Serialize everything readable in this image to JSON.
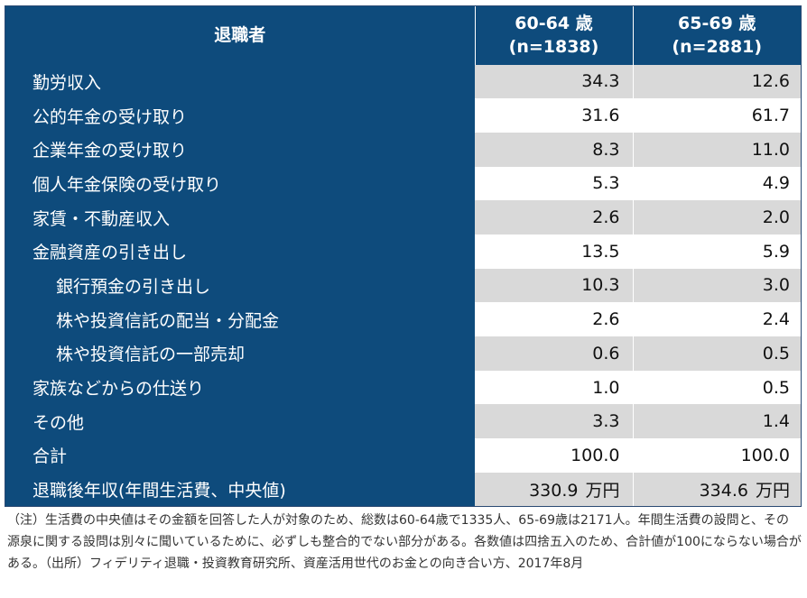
{
  "header": {
    "col1": "退職者",
    "col2_line1": "60-64 歳",
    "col2_line2": "(n=1838)",
    "col3_line1": "65-69 歳",
    "col3_line2": "(n=2881)"
  },
  "rows": [
    {
      "label": "勤労収入",
      "a": "34.3",
      "b": "12.6"
    },
    {
      "label": "公的年金の受け取り",
      "a": "31.6",
      "b": "61.7"
    },
    {
      "label": "企業年金の受け取り",
      "a": "8.3",
      "b": "11.0"
    },
    {
      "label": "個人年金保険の受け取り",
      "a": "5.3",
      "b": "4.9"
    },
    {
      "label": "家賃・不動産収入",
      "a": "2.6",
      "b": "2.0"
    },
    {
      "label": "金融資産の引き出し",
      "a": "13.5",
      "b": "5.9"
    },
    {
      "label": "銀行預金の引き出し",
      "a": "10.3",
      "b": "3.0"
    },
    {
      "label": "株や投資信託の配当・分配金",
      "a": "2.6",
      "b": "2.4"
    },
    {
      "label": "株や投資信託の一部売却",
      "a": "0.6",
      "b": "0.5"
    },
    {
      "label": "家族などからの仕送り",
      "a": "1.0",
      "b": "0.5"
    },
    {
      "label": "その他",
      "a": "3.3",
      "b": "1.4"
    },
    {
      "label": "合計",
      "a": "100.0",
      "b": "100.0"
    },
    {
      "label": "退職後年収(年間生活費、中央値)",
      "a": "330.9",
      "b": "334.6",
      "unit": "万円"
    }
  ],
  "note": "（注）生活費の中央値はその金額を回答した人が対象のため、総数は60-64歳で1335人、65-69歳は2171人。年間生活費の設問と、その源泉に関する設問は別々に聞いているために、必ずしも整合的でない部分がある。各数値は四捨五入のため、合計値が100にならない場合がある。（出所）フィデリティ退職・投資教育研究所、資産活用世代のお金との向き合い方、2017年8月",
  "colors": {
    "header_bg": "#0e4b7c",
    "shade": "#d9d9d9",
    "text_light": "#ffffff"
  }
}
